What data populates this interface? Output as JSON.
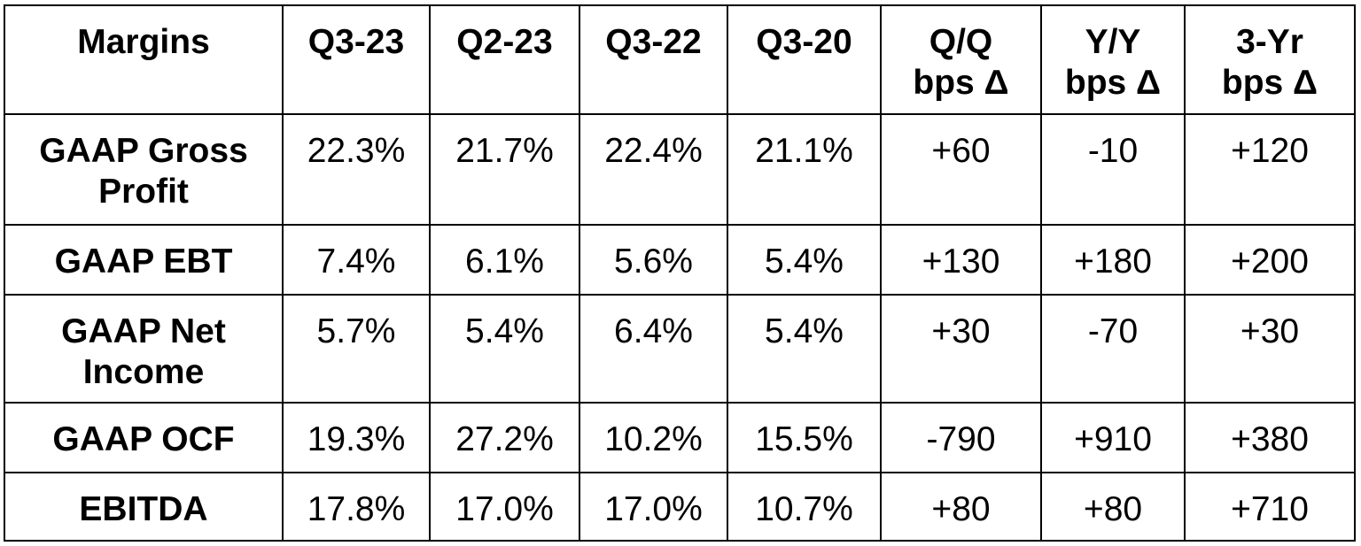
{
  "table": {
    "headers": [
      [
        "Margins"
      ],
      [
        "Q3-23"
      ],
      [
        "Q2-23"
      ],
      [
        "Q3-22"
      ],
      [
        "Q3-20"
      ],
      [
        "Q/Q",
        "bps Δ"
      ],
      [
        "Y/Y",
        "bps Δ"
      ],
      [
        "3-Yr",
        "bps Δ"
      ]
    ],
    "rows": [
      {
        "label": [
          "GAAP Gross",
          "Profit"
        ],
        "values": [
          "22.3%",
          "21.7%",
          "22.4%",
          "21.1%",
          "+60",
          "-10",
          "+120"
        ]
      },
      {
        "label": [
          "GAAP EBT"
        ],
        "values": [
          "7.4%",
          "6.1%",
          "5.6%",
          "5.4%",
          "+130",
          "+180",
          "+200"
        ]
      },
      {
        "label": [
          "GAAP Net",
          "Income"
        ],
        "values": [
          "5.7%",
          "5.4%",
          "6.4%",
          "5.4%",
          "+30",
          "-70",
          "+30"
        ]
      },
      {
        "label": [
          "GAAP OCF"
        ],
        "values": [
          "19.3%",
          "27.2%",
          "10.2%",
          "15.5%",
          "-790",
          "+910",
          "+380"
        ]
      },
      {
        "label": [
          "EBITDA"
        ],
        "values": [
          "17.8%",
          "17.0%",
          "17.0%",
          "10.7%",
          "+80",
          "+80",
          "+710"
        ]
      }
    ]
  }
}
